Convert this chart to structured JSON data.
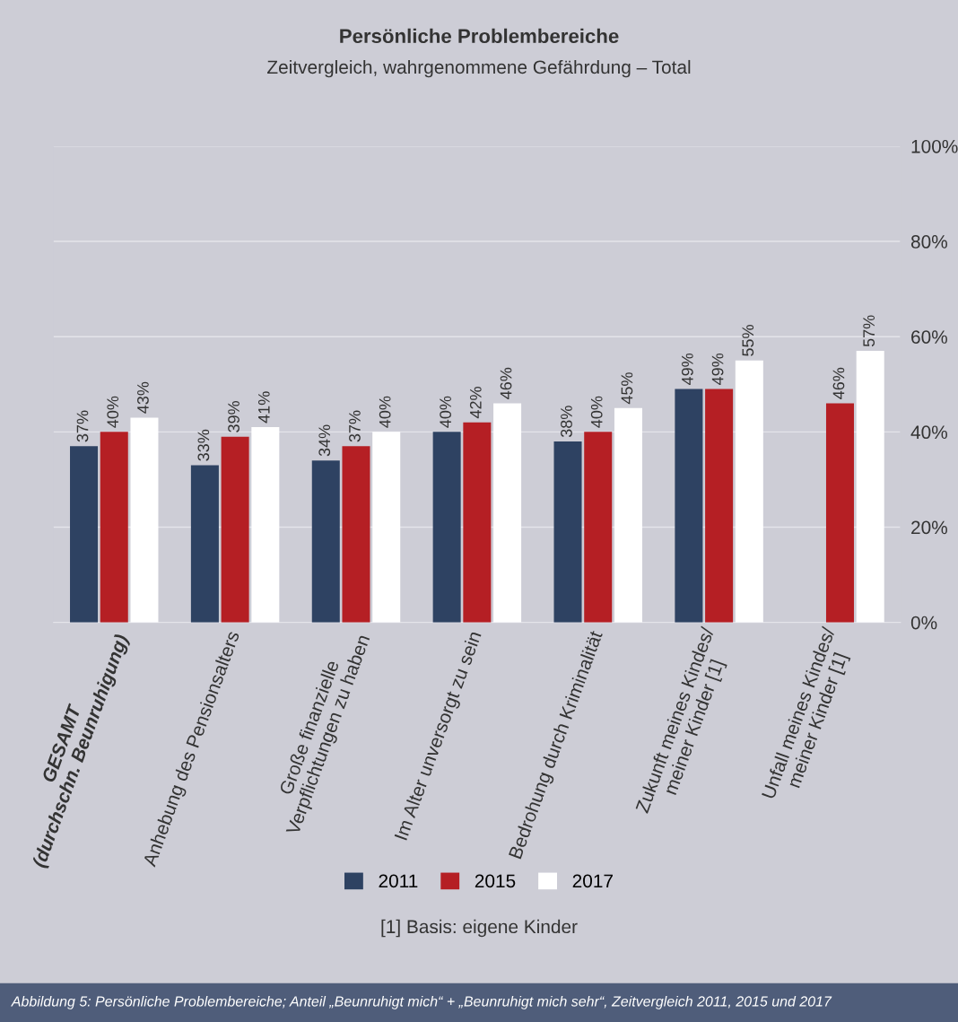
{
  "chart_data": {
    "type": "bar",
    "title": "Persönliche Problembereiche",
    "subtitle": "Zeitvergleich, wahrgenommene Gefährdung – Total",
    "categories": [
      "GESAMT\n(durchschn. Beunruhigung)",
      "Anhebung des Pensionsalters",
      "Große finanzielle\nVerpflichtungen zu haben",
      "Im Alter unversorgt zu sein",
      "Bedrohung durch Kriminalität",
      "Zukunft meines Kindes/\nmeiner Kinder [1]",
      "Unfall meines Kindes/\nmeiner Kinder [1]"
    ],
    "series": [
      {
        "name": "2011",
        "color": "#2e4262",
        "values": [
          37,
          33,
          34,
          40,
          38,
          49,
          null
        ],
        "value_labels": [
          "37%",
          "33%",
          "34%",
          "40%",
          "38%",
          "49%",
          null
        ]
      },
      {
        "name": "2015",
        "color": "#b51f24",
        "values": [
          40,
          39,
          37,
          42,
          40,
          49,
          46
        ],
        "value_labels": [
          "40%",
          "39%",
          "37%",
          "42%",
          "40%",
          "49%",
          "46%"
        ]
      },
      {
        "name": "2017",
        "color": "#ffffff",
        "values": [
          43,
          41,
          40,
          46,
          45,
          55,
          57
        ],
        "value_labels": [
          "43%",
          "41%",
          "40%",
          "46%",
          "45%",
          "55%",
          "57%"
        ]
      }
    ],
    "ylim": [
      0,
      100
    ],
    "yticks": [
      {
        "value": 0,
        "label": "0%"
      },
      {
        "value": 20,
        "label": "20%"
      },
      {
        "value": 40,
        "label": "40%"
      },
      {
        "value": 60,
        "label": "60%"
      },
      {
        "value": 80,
        "label": "80%"
      },
      {
        "value": 100,
        "label": "100%"
      }
    ],
    "grid": "y",
    "legend": "bottom",
    "annotations": [
      "[1] Basis: eigene Kinder",
      "Abbildung 5: Persönliche Problembereiche; Anteil „Beunruhigt mich“ + „Beunruhigt mich sehr“, Zeitvergleich 2011, 2015 und 2017"
    ]
  }
}
